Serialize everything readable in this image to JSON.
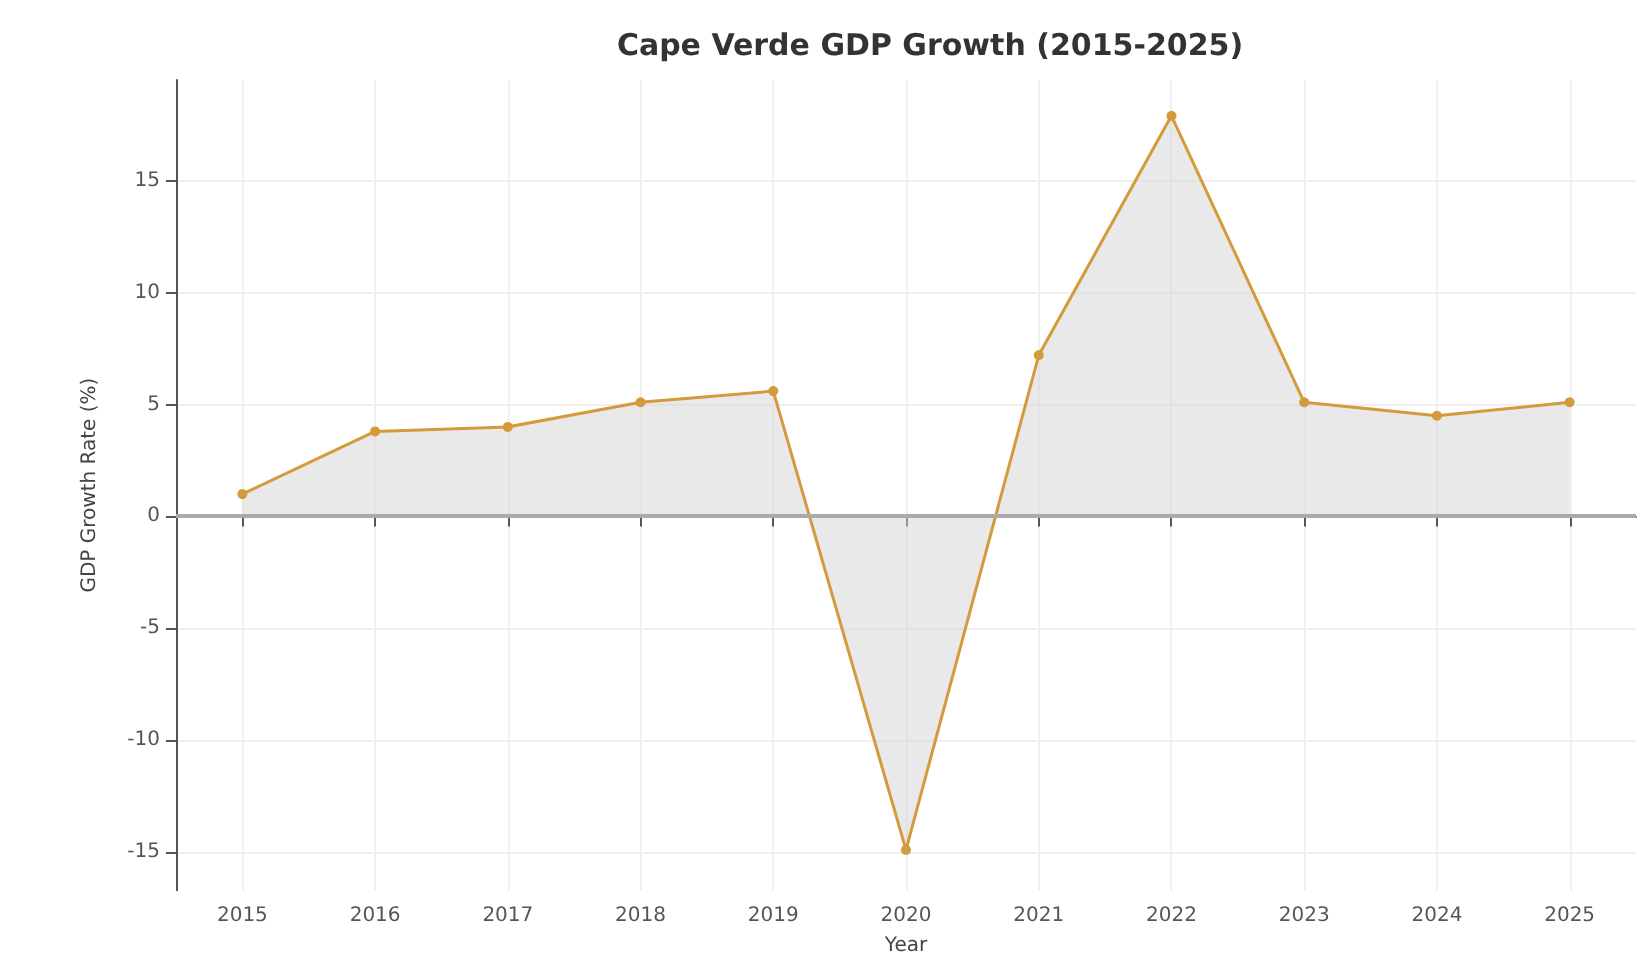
{
  "chart_data": {
    "type": "area",
    "title": "Cape Verde GDP Growth (2015-2025)",
    "xlabel": "Year",
    "ylabel": "GDP Growth Rate (%)",
    "x": [
      2015,
      2016,
      2017,
      2018,
      2019,
      2020,
      2021,
      2022,
      2023,
      2024,
      2025
    ],
    "series": [
      {
        "color": "#d49a3c",
        "values": [
          1.0,
          3.8,
          4.0,
          5.1,
          5.6,
          -14.9,
          7.2,
          17.9,
          5.1,
          4.5,
          5.1
        ]
      }
    ],
    "xlim": [
      2014.5,
      2025.5
    ],
    "xticks": [
      2015,
      2016,
      2017,
      2018,
      2019,
      2020,
      2021,
      2022,
      2023,
      2024,
      2025
    ],
    "ylim": [
      -16.7,
      19.5
    ],
    "yticks": [
      -15,
      -10,
      -5,
      0,
      5,
      10,
      15
    ],
    "ref_lines": [
      {
        "axis": "y",
        "value": 0,
        "color": "#aaaaaa"
      }
    ],
    "grid": true,
    "marker": "circle",
    "line_style": "solid"
  }
}
